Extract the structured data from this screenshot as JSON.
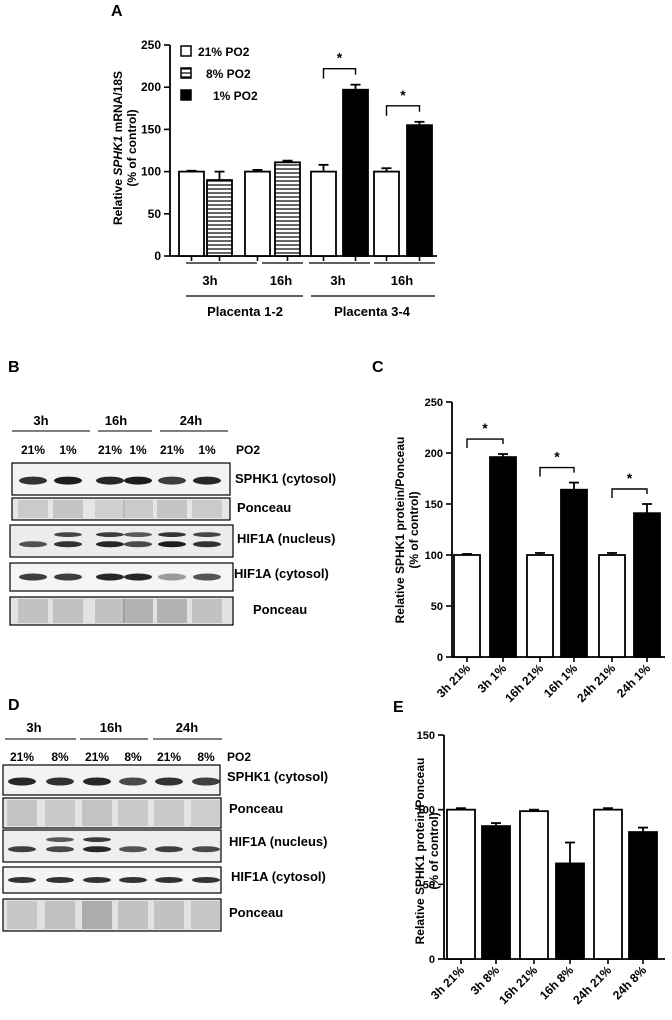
{
  "panels": {
    "A": {
      "label": "A",
      "ylabel_pre": "Relative ",
      "ylabel_gene": "SPHK1",
      "ylabel_post": " mRNA/18S",
      "ylabel2": "(% of control)",
      "legend": [
        {
          "text": "21%  PO2",
          "style": "open"
        },
        {
          "text": "8%  PO2",
          "style": "striped"
        },
        {
          "text": "1%  PO2",
          "style": "filled"
        }
      ],
      "time_labels": [
        "3h",
        "16h",
        "3h",
        "16h"
      ],
      "group_labels": [
        "Placenta 1-2",
        "Placenta 3-4"
      ],
      "sig_marker": "*"
    },
    "B": {
      "label": "B",
      "times": [
        "3h",
        "16h",
        "24h"
      ],
      "lanes": [
        "21%",
        "1%",
        "21%",
        "1%",
        "21%",
        "1%"
      ],
      "po2": "PO2",
      "blots": [
        "SPHK1 (cytosol)",
        "Ponceau",
        "HIF1A (nucleus)",
        "HIF1A (cytosol)",
        "Ponceau"
      ]
    },
    "C": {
      "label": "C",
      "ylabel": "Relative SPHK1 protein/Ponceau",
      "ylabel2": "(% of control)",
      "sig_marker": "*"
    },
    "D": {
      "label": "D",
      "times": [
        "3h",
        "16h",
        "24h"
      ],
      "lanes": [
        "21%",
        "8%",
        "21%",
        "8%",
        "21%",
        "8%"
      ],
      "po2": "PO2",
      "blots": [
        "SPHK1 (cytosol)",
        "Ponceau",
        "HIF1A (nucleus)",
        "HIF1A (cytosol)",
        "Ponceau"
      ]
    },
    "E": {
      "label": "E",
      "ylabel": "Relative SPHK1 protein/Ponceau",
      "ylabel2": "(% of control)"
    }
  },
  "chart_data": [
    {
      "id": "A",
      "type": "bar",
      "categories": [
        "3h 21%",
        "3h 8%",
        "16h 21%",
        "16h 8%",
        "3h 21%",
        "3h 1%",
        "16h 21%",
        "16h 1%"
      ],
      "values": [
        100,
        90,
        100,
        111,
        100,
        197,
        100,
        155
      ],
      "errors": [
        1,
        10,
        2,
        2,
        8,
        6,
        4,
        4
      ],
      "fills": [
        "open",
        "striped",
        "open",
        "striped",
        "open",
        "filled",
        "open",
        "filled"
      ],
      "ylim": [
        0,
        250
      ],
      "yticks": [
        0,
        50,
        100,
        150,
        200,
        250
      ],
      "significance": [
        [
          4,
          5
        ],
        [
          6,
          7
        ]
      ]
    },
    {
      "id": "C",
      "type": "bar",
      "categories": [
        "3h 21%",
        "3h 1%",
        "16h 21%",
        "16h 1%",
        "24h 21%",
        "24h 1%"
      ],
      "values": [
        100,
        196,
        100,
        164,
        100,
        141
      ],
      "errors": [
        1,
        3,
        2,
        7,
        2,
        9
      ],
      "fills": [
        "open",
        "filled",
        "open",
        "filled",
        "open",
        "filled"
      ],
      "ylim": [
        0,
        250
      ],
      "yticks": [
        0,
        50,
        100,
        150,
        200,
        250
      ],
      "significance": [
        [
          0,
          1
        ],
        [
          2,
          3
        ],
        [
          4,
          5
        ]
      ]
    },
    {
      "id": "E",
      "type": "bar",
      "categories": [
        "3h 21%",
        "3h 8%",
        "16h 21%",
        "16h 8%",
        "24h 21%",
        "24h 8%"
      ],
      "values": [
        100,
        89,
        99,
        64,
        100,
        85
      ],
      "errors": [
        1,
        2,
        1,
        14,
        1,
        3
      ],
      "fills": [
        "open",
        "filled",
        "open",
        "filled",
        "open",
        "filled"
      ],
      "ylim": [
        0,
        150
      ],
      "yticks": [
        0,
        50,
        100,
        150
      ],
      "significance": []
    }
  ]
}
